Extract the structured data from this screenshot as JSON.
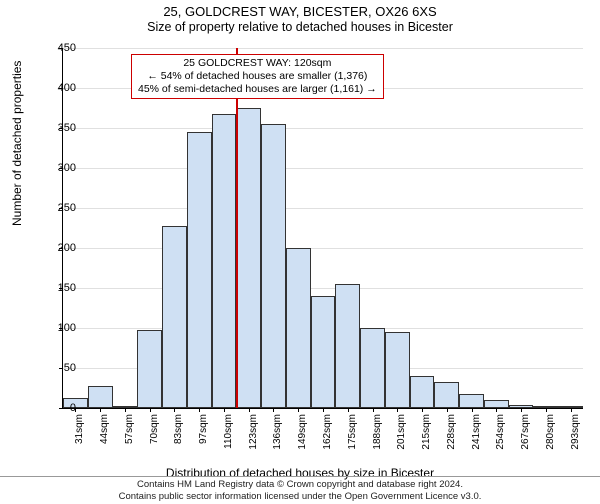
{
  "title": "25, GOLDCREST WAY, BICESTER, OX26 6XS",
  "subtitle": "Size of property relative to detached houses in Bicester",
  "chart": {
    "type": "histogram",
    "ylabel": "Number of detached properties",
    "xlabel": "Distribution of detached houses by size in Bicester",
    "ylim": [
      0,
      450
    ],
    "ytick_step": 50,
    "yticks": [
      0,
      50,
      100,
      150,
      200,
      250,
      300,
      350,
      400,
      450
    ],
    "xticks": [
      "31sqm",
      "44sqm",
      "57sqm",
      "70sqm",
      "83sqm",
      "97sqm",
      "110sqm",
      "123sqm",
      "136sqm",
      "149sqm",
      "162sqm",
      "175sqm",
      "188sqm",
      "201sqm",
      "215sqm",
      "228sqm",
      "241sqm",
      "254sqm",
      "267sqm",
      "280sqm",
      "293sqm"
    ],
    "bar_values": [
      12,
      28,
      3,
      98,
      228,
      345,
      368,
      375,
      355,
      200,
      140,
      155,
      100,
      95,
      40,
      32,
      18,
      10,
      4,
      3,
      3
    ],
    "bar_color": "#cfe0f3",
    "bar_border_color": "#333333",
    "background_color": "#ffffff",
    "grid_color": "#e0e0e0",
    "vline": {
      "x_label": "120sqm",
      "x_index": 7.0,
      "color": "#cc0000"
    },
    "annotation": {
      "line1": "25 GOLDCREST WAY: 120sqm",
      "line2": "← 54% of detached houses are smaller (1,376)",
      "line3": "45% of semi-detached houses are larger (1,161) →",
      "border_color": "#cc0000"
    },
    "label_fontsize": 12,
    "tick_fontsize": 11
  },
  "footer": {
    "line1": "Contains HM Land Registry data © Crown copyright and database right 2024.",
    "line2": "Contains public sector information licensed under the Open Government Licence v3.0."
  }
}
